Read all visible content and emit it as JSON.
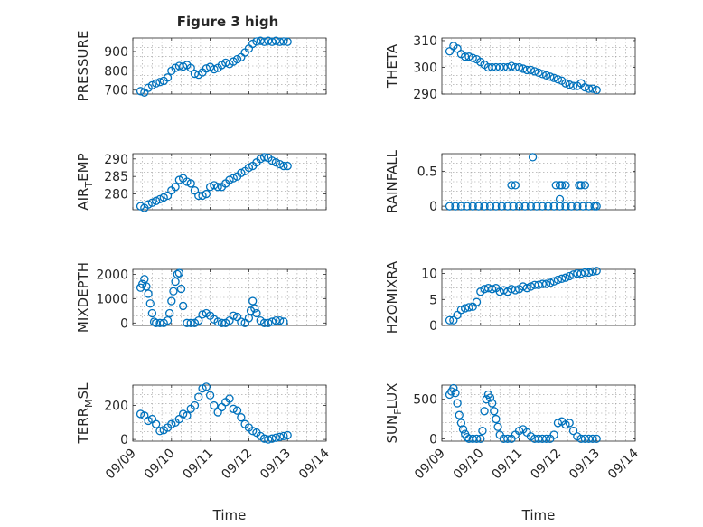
{
  "figure": {
    "title": "Figure 3 high",
    "marker_color": "#0072BD",
    "grid": true,
    "x_tick_labels": [
      "09/09",
      "09/10",
      "09/11",
      "09/12",
      "09/13",
      "09/14"
    ],
    "x_label": "Time"
  },
  "chart_data": [
    {
      "type": "scatter",
      "marker": "circle",
      "title": "Figure 3 high",
      "ylabel": "PRESSURE",
      "ylabel_sub": "",
      "ylabel_tail": "",
      "xlabel": "",
      "xlim": [
        0,
        5
      ],
      "ylim": [
        680,
        970
      ],
      "yticks": [
        700,
        800,
        900
      ],
      "x": [
        0.2,
        0.3,
        0.4,
        0.5,
        0.6,
        0.7,
        0.8,
        0.9,
        1.0,
        1.1,
        1.2,
        1.3,
        1.4,
        1.5,
        1.6,
        1.7,
        1.8,
        1.9,
        2.0,
        2.1,
        2.2,
        2.3,
        2.4,
        2.5,
        2.6,
        2.7,
        2.8,
        2.9,
        3.0,
        3.1,
        3.2,
        3.3,
        3.4,
        3.5,
        3.6,
        3.7,
        3.8,
        3.9,
        4.0
      ],
      "y": [
        695,
        688,
        712,
        725,
        735,
        742,
        748,
        765,
        800,
        815,
        825,
        822,
        830,
        815,
        785,
        780,
        792,
        812,
        820,
        808,
        815,
        830,
        842,
        835,
        848,
        860,
        870,
        895,
        915,
        940,
        952,
        955,
        950,
        955,
        950,
        955,
        950,
        952,
        950
      ]
    },
    {
      "type": "scatter",
      "marker": "circle",
      "title": "",
      "ylabel": "THETA",
      "ylabel_sub": "",
      "ylabel_tail": "",
      "xlabel": "",
      "xlim": [
        0,
        5
      ],
      "ylim": [
        290,
        311
      ],
      "yticks": [
        290,
        300,
        310
      ],
      "x": [
        0.2,
        0.3,
        0.4,
        0.5,
        0.6,
        0.7,
        0.8,
        0.9,
        1.0,
        1.1,
        1.2,
        1.3,
        1.4,
        1.5,
        1.6,
        1.7,
        1.8,
        1.9,
        2.0,
        2.1,
        2.2,
        2.3,
        2.4,
        2.5,
        2.6,
        2.7,
        2.8,
        2.9,
        3.0,
        3.1,
        3.2,
        3.3,
        3.4,
        3.5,
        3.6,
        3.7,
        3.8,
        3.9,
        4.0
      ],
      "y": [
        306,
        308,
        307,
        305,
        304,
        304,
        303.5,
        303,
        302,
        301,
        300,
        300,
        300,
        300,
        300,
        300,
        300.5,
        300,
        300,
        299.5,
        299,
        299,
        298.5,
        298,
        297.5,
        297,
        296.5,
        296,
        295.5,
        295,
        294,
        293.5,
        293,
        293,
        294,
        292.5,
        292,
        292,
        291.5
      ]
    },
    {
      "type": "scatter",
      "marker": "circle",
      "title": "",
      "ylabel": "AIR",
      "ylabel_sub": "T",
      "ylabel_tail": "EMP",
      "xlabel": "",
      "xlim": [
        0,
        5
      ],
      "ylim": [
        275.5,
        291.5
      ],
      "yticks": [
        280,
        285,
        290
      ],
      "x": [
        0.2,
        0.3,
        0.4,
        0.5,
        0.6,
        0.7,
        0.8,
        0.9,
        1.0,
        1.1,
        1.2,
        1.3,
        1.4,
        1.5,
        1.6,
        1.7,
        1.8,
        1.9,
        2.0,
        2.1,
        2.2,
        2.3,
        2.4,
        2.5,
        2.6,
        2.7,
        2.8,
        2.9,
        3.0,
        3.1,
        3.2,
        3.3,
        3.4,
        3.5,
        3.6,
        3.7,
        3.8,
        3.9,
        4.0
      ],
      "y": [
        276.5,
        276,
        277,
        277.5,
        278,
        278.5,
        279,
        279.5,
        281,
        282,
        284,
        284.5,
        283.5,
        283,
        281,
        279.5,
        279.5,
        280,
        282,
        282.5,
        282,
        282,
        283,
        284,
        284.5,
        285,
        286,
        286.5,
        287.5,
        288,
        289,
        290,
        290.5,
        290.3,
        289.5,
        289,
        288.5,
        288,
        288
      ]
    },
    {
      "type": "scatter",
      "marker": "circle",
      "title": "",
      "ylabel": "RAINFALL",
      "ylabel_sub": "",
      "ylabel_tail": "",
      "xlabel": "",
      "xlim": [
        0,
        5
      ],
      "ylim": [
        -0.05,
        0.75
      ],
      "yticks": [
        0,
        0.5
      ],
      "x": [
        0.2,
        0.35,
        0.5,
        0.65,
        0.8,
        0.95,
        1.1,
        1.25,
        1.4,
        1.55,
        1.7,
        1.85,
        2.0,
        2.15,
        2.3,
        2.45,
        2.6,
        2.75,
        2.9,
        3.05,
        3.2,
        3.35,
        3.5,
        3.65,
        3.8,
        3.95,
        4.0,
        1.8,
        1.9,
        2.35,
        2.95,
        3.05,
        3.1,
        3.2,
        3.55,
        3.6,
        3.7,
        3.05
      ],
      "y": [
        0,
        0,
        0,
        0,
        0,
        0,
        0,
        0,
        0,
        0,
        0,
        0,
        0,
        0,
        0,
        0,
        0,
        0,
        0,
        0,
        0,
        0,
        0,
        0,
        0,
        0,
        0,
        0.3,
        0.3,
        0.7,
        0.3,
        0.3,
        0.3,
        0.3,
        0.3,
        0.3,
        0.3,
        0.1
      ]
    },
    {
      "type": "scatter",
      "marker": "circle",
      "title": "",
      "ylabel": "MIXDEPTH",
      "ylabel_sub": "",
      "ylabel_tail": "",
      "xlabel": "",
      "xlim": [
        0,
        5
      ],
      "ylim": [
        -100,
        2200
      ],
      "yticks": [
        0,
        1000,
        2000
      ],
      "x": [
        0.2,
        0.25,
        0.3,
        0.35,
        0.4,
        0.45,
        0.5,
        0.55,
        0.6,
        0.7,
        0.8,
        0.9,
        0.95,
        1.0,
        1.05,
        1.1,
        1.15,
        1.2,
        1.25,
        1.3,
        1.4,
        1.5,
        1.6,
        1.7,
        1.8,
        1.9,
        2.0,
        2.1,
        2.2,
        2.3,
        2.4,
        2.5,
        2.6,
        2.7,
        2.8,
        2.9,
        3.0,
        3.05,
        3.1,
        3.15,
        3.2,
        3.3,
        3.4,
        3.5,
        3.6,
        3.7,
        3.8,
        3.9
      ],
      "y": [
        1450,
        1600,
        1800,
        1500,
        1200,
        800,
        400,
        50,
        0,
        0,
        0,
        100,
        400,
        900,
        1300,
        1700,
        2000,
        2050,
        1400,
        700,
        0,
        0,
        0,
        100,
        350,
        400,
        300,
        150,
        50,
        0,
        0,
        100,
        300,
        250,
        50,
        0,
        200,
        500,
        900,
        600,
        400,
        100,
        0,
        0,
        50,
        100,
        100,
        50
      ]
    },
    {
      "type": "scatter",
      "marker": "circle",
      "title": "",
      "ylabel": "H2OMIXRA",
      "ylabel_sub": "",
      "ylabel_tail": "",
      "xlabel": "",
      "xlim": [
        0,
        5
      ],
      "ylim": [
        0,
        10.8
      ],
      "yticks": [
        0,
        5,
        10
      ],
      "x": [
        0.2,
        0.3,
        0.4,
        0.5,
        0.6,
        0.7,
        0.8,
        0.9,
        1.0,
        1.1,
        1.2,
        1.3,
        1.4,
        1.5,
        1.6,
        1.7,
        1.8,
        1.9,
        2.0,
        2.1,
        2.2,
        2.3,
        2.4,
        2.5,
        2.6,
        2.7,
        2.8,
        2.9,
        3.0,
        3.1,
        3.2,
        3.3,
        3.4,
        3.5,
        3.6,
        3.7,
        3.8,
        3.9,
        4.0
      ],
      "y": [
        1,
        1,
        2,
        3,
        3.3,
        3.5,
        3.6,
        4.5,
        6.5,
        7,
        7.2,
        7,
        7.2,
        6.5,
        6.8,
        6.5,
        7,
        6.8,
        7,
        7.5,
        7.2,
        7.5,
        7.8,
        7.8,
        8,
        8,
        8.2,
        8.5,
        8.8,
        9,
        9.2,
        9.5,
        9.8,
        10,
        10,
        10.2,
        10.2,
        10.4,
        10.5
      ]
    },
    {
      "type": "scatter",
      "marker": "circle",
      "title": "",
      "ylabel": "TERR",
      "ylabel_sub": "M",
      "ylabel_tail": "SL",
      "xlabel": "Time",
      "xlim": [
        0,
        5
      ],
      "ylim": [
        -10,
        320
      ],
      "yticks": [
        0,
        200
      ],
      "x": [
        0.2,
        0.3,
        0.4,
        0.5,
        0.6,
        0.7,
        0.8,
        0.9,
        1.0,
        1.1,
        1.2,
        1.3,
        1.4,
        1.5,
        1.6,
        1.7,
        1.8,
        1.9,
        2.0,
        2.1,
        2.2,
        2.3,
        2.4,
        2.5,
        2.6,
        2.7,
        2.8,
        2.9,
        3.0,
        3.1,
        3.2,
        3.3,
        3.4,
        3.5,
        3.6,
        3.7,
        3.8,
        3.9,
        4.0
      ],
      "y": [
        150,
        140,
        110,
        120,
        90,
        50,
        55,
        70,
        90,
        100,
        120,
        150,
        140,
        180,
        200,
        250,
        300,
        310,
        260,
        200,
        160,
        190,
        220,
        240,
        180,
        170,
        130,
        90,
        70,
        50,
        40,
        20,
        5,
        0,
        5,
        10,
        15,
        20,
        25
      ]
    },
    {
      "type": "scatter",
      "marker": "circle",
      "title": "",
      "ylabel": "SUN",
      "ylabel_sub": "F",
      "ylabel_tail": "LUX",
      "xlabel": "Time",
      "xlim": [
        0,
        5
      ],
      "ylim": [
        -30,
        680
      ],
      "yticks": [
        0,
        500
      ],
      "x": [
        0.2,
        0.25,
        0.3,
        0.35,
        0.4,
        0.45,
        0.5,
        0.55,
        0.6,
        0.65,
        0.7,
        0.8,
        0.9,
        1.0,
        1.05,
        1.1,
        1.15,
        1.2,
        1.25,
        1.3,
        1.35,
        1.4,
        1.45,
        1.5,
        1.6,
        1.7,
        1.8,
        1.9,
        2.0,
        2.1,
        2.2,
        2.3,
        2.4,
        2.5,
        2.6,
        2.7,
        2.8,
        2.9,
        3.0,
        3.1,
        3.2,
        3.3,
        3.4,
        3.5,
        3.6,
        3.7,
        3.8,
        3.9,
        4.0
      ],
      "y": [
        560,
        600,
        640,
        580,
        450,
        300,
        200,
        120,
        60,
        20,
        0,
        0,
        0,
        0,
        100,
        350,
        500,
        560,
        520,
        450,
        350,
        250,
        150,
        50,
        0,
        0,
        0,
        50,
        100,
        120,
        80,
        30,
        0,
        0,
        0,
        0,
        0,
        50,
        200,
        220,
        180,
        200,
        100,
        30,
        0,
        0,
        0,
        0,
        0
      ]
    }
  ]
}
